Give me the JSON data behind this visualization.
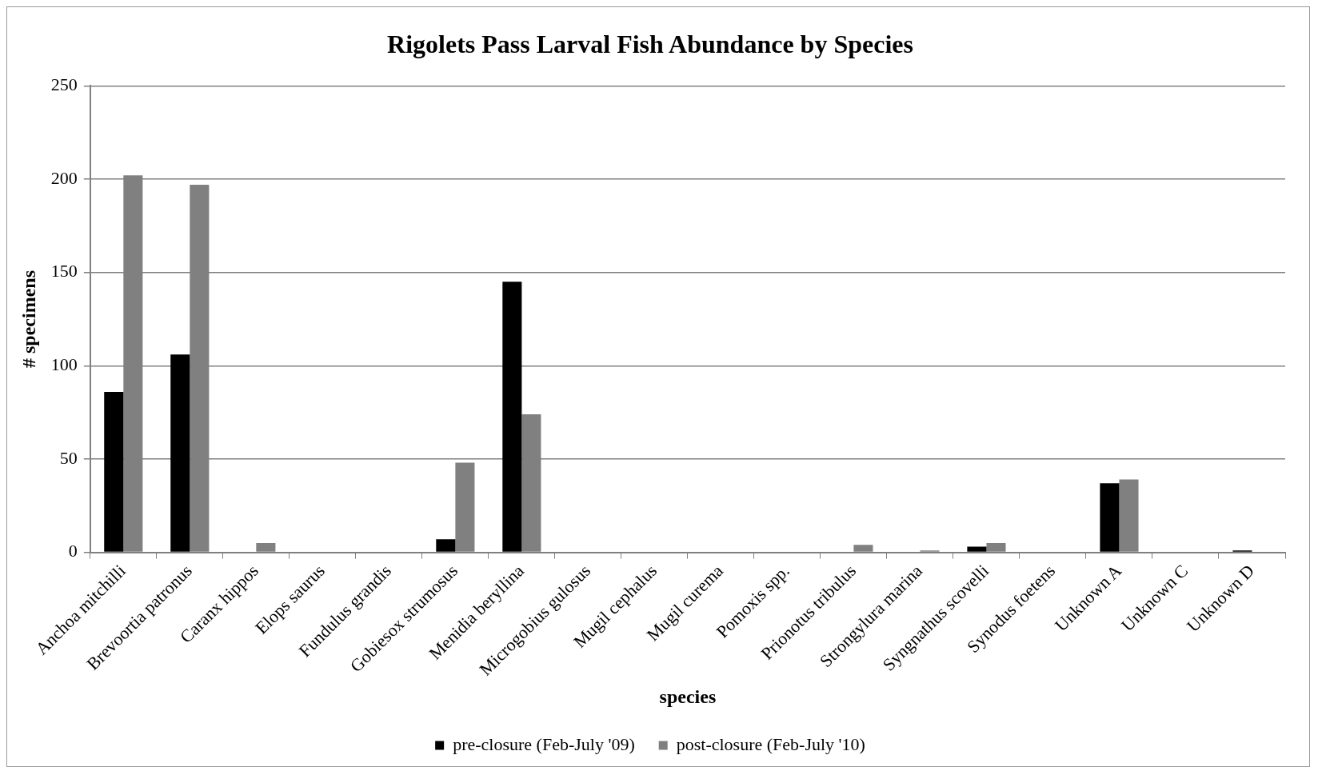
{
  "chart_data": {
    "type": "bar",
    "title": "Rigolets Pass Larval Fish Abundance by Species",
    "xlabel": "species",
    "ylabel": "# specimens",
    "categories": [
      "Anchoa mitchilli",
      "Brevoortia patronus",
      "Caranx hippos",
      "Elops saurus",
      "Fundulus grandis",
      "Gobiesox strumosus",
      "Menidia beryllina",
      "Microgobius gulosus",
      "Mugil cephalus",
      "Mugil curema",
      "Pomoxis spp.",
      "Prionotus tribulus",
      "Strongylura marina",
      "Syngnathus scovelli",
      "Synodus foetens",
      "Unknown A",
      "Unknown C",
      "Unknown D"
    ],
    "series": [
      {
        "name": "pre-closure (Feb-July '09)",
        "color": "#000000",
        "values": [
          86,
          106,
          0,
          0,
          0,
          7,
          145,
          0,
          0,
          0,
          0,
          0,
          0,
          3,
          0,
          37,
          0,
          1
        ]
      },
      {
        "name": "post-closure (Feb-July '10)",
        "color": "#808080",
        "values": [
          202,
          197,
          5,
          0,
          0,
          48,
          74,
          0,
          0,
          0,
          0,
          4,
          1,
          5,
          0,
          39,
          0,
          0
        ]
      }
    ],
    "ylim": [
      0,
      250
    ],
    "yticks": [
      0,
      50,
      100,
      150,
      200,
      250
    ],
    "grid": "y",
    "legend": "bottom"
  }
}
